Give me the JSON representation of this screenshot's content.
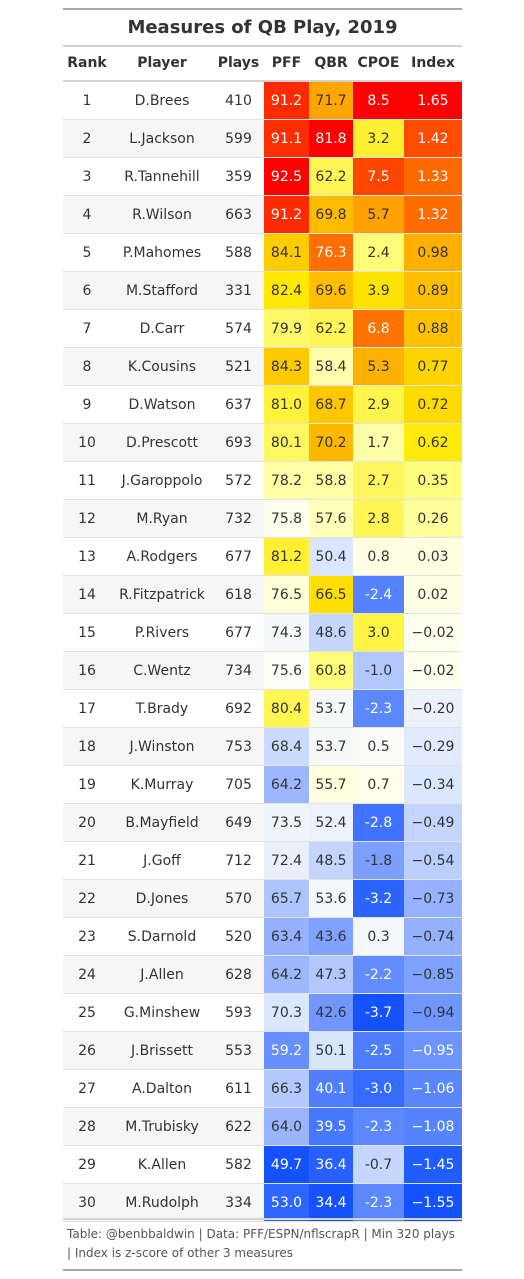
{
  "chart_data": {
    "type": "table",
    "title": "Measures of QB Play, 2019",
    "columns": [
      "Rank",
      "Player",
      "Plays",
      "PFF",
      "QBR",
      "CPOE",
      "Index"
    ],
    "rows": [
      [
        1,
        "D.Brees",
        410,
        "91.2",
        "71.7",
        "8.5",
        "1.65"
      ],
      [
        2,
        "L.Jackson",
        599,
        "91.1",
        "81.8",
        "3.2",
        "1.42"
      ],
      [
        3,
        "R.Tannehill",
        359,
        "92.5",
        "62.2",
        "7.5",
        "1.33"
      ],
      [
        4,
        "R.Wilson",
        663,
        "91.2",
        "69.8",
        "5.7",
        "1.32"
      ],
      [
        5,
        "P.Mahomes",
        588,
        "84.1",
        "76.3",
        "2.4",
        "0.98"
      ],
      [
        6,
        "M.Stafford",
        331,
        "82.4",
        "69.6",
        "3.9",
        "0.89"
      ],
      [
        7,
        "D.Carr",
        574,
        "79.9",
        "62.2",
        "6.8",
        "0.88"
      ],
      [
        8,
        "K.Cousins",
        521,
        "84.3",
        "58.4",
        "5.3",
        "0.77"
      ],
      [
        9,
        "D.Watson",
        637,
        "81.0",
        "68.7",
        "2.9",
        "0.72"
      ],
      [
        10,
        "D.Prescott",
        693,
        "80.1",
        "70.2",
        "1.7",
        "0.62"
      ],
      [
        11,
        "J.Garoppolo",
        572,
        "78.2",
        "58.8",
        "2.7",
        "0.35"
      ],
      [
        12,
        "M.Ryan",
        732,
        "75.8",
        "57.6",
        "2.8",
        "0.26"
      ],
      [
        13,
        "A.Rodgers",
        677,
        "81.2",
        "50.4",
        "0.8",
        "0.03"
      ],
      [
        14,
        "R.Fitzpatrick",
        618,
        "76.5",
        "66.5",
        "-2.4",
        "0.02"
      ],
      [
        15,
        "P.Rivers",
        677,
        "74.3",
        "48.6",
        "3.0",
        "−0.02"
      ],
      [
        16,
        "C.Wentz",
        734,
        "75.6",
        "60.8",
        "-1.0",
        "−0.02"
      ],
      [
        17,
        "T.Brady",
        692,
        "80.4",
        "53.7",
        "-2.3",
        "−0.20"
      ],
      [
        18,
        "J.Winston",
        753,
        "68.4",
        "53.7",
        "0.5",
        "−0.29"
      ],
      [
        19,
        "K.Murray",
        705,
        "64.2",
        "55.7",
        "0.7",
        "−0.34"
      ],
      [
        20,
        "B.Mayfield",
        649,
        "73.5",
        "52.4",
        "-2.8",
        "−0.49"
      ],
      [
        21,
        "J.Goff",
        712,
        "72.4",
        "48.5",
        "-1.8",
        "−0.54"
      ],
      [
        22,
        "D.Jones",
        570,
        "65.7",
        "53.6",
        "-3.2",
        "−0.73"
      ],
      [
        23,
        "S.Darnold",
        520,
        "63.4",
        "43.6",
        "0.3",
        "−0.74"
      ],
      [
        24,
        "J.Allen",
        628,
        "64.2",
        "47.3",
        "-2.2",
        "−0.85"
      ],
      [
        25,
        "G.Minshew",
        593,
        "70.3",
        "42.6",
        "-3.7",
        "−0.94"
      ],
      [
        26,
        "J.Brissett",
        553,
        "59.2",
        "50.1",
        "-2.5",
        "−0.95"
      ],
      [
        27,
        "A.Dalton",
        611,
        "66.3",
        "40.1",
        "-3.0",
        "−1.06"
      ],
      [
        28,
        "M.Trubisky",
        622,
        "64.0",
        "39.5",
        "-2.3",
        "−1.08"
      ],
      [
        29,
        "K.Allen",
        582,
        "49.7",
        "36.4",
        "-0.7",
        "−1.45"
      ],
      [
        30,
        "M.Rudolph",
        334,
        "53.0",
        "34.4",
        "-2.3",
        "−1.55"
      ]
    ],
    "footnote": "Table: @benbbaldwin | Data: PFF/ESPN/nflscrapR | Min 320 plays | Index is z-score of other 3 measures"
  }
}
